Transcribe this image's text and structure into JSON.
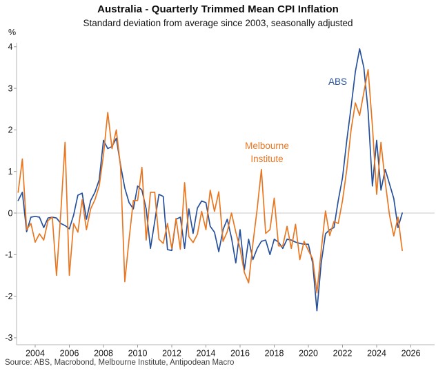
{
  "title": "Australia - Quarterly Trimmed Mean CPI Inflation",
  "subtitle": "Standard deviation from average since 2003, seasonally adjusted",
  "y_unit_label": "%",
  "source_note": "Source: ABS, Macrobond, Melbourne Institute, Antipodean Macro",
  "colors": {
    "abs_blue": "#27509B",
    "mi_orange": "#E87722",
    "zero_line": "#c9c9c9",
    "axis": "#b5b5b5",
    "tick": "#999999"
  },
  "chart_data": {
    "type": "line",
    "title": "Australia - Quarterly Trimmed Mean CPI Inflation",
    "subtitle": "Standard deviation from average since 2003, seasonally adjusted",
    "xlabel": "",
    "ylabel": "%",
    "ylim": [
      -3,
      4
    ],
    "xlim": [
      2002.9,
      2027.3
    ],
    "x_ticks": [
      2004,
      2006,
      2008,
      2010,
      2012,
      2014,
      2016,
      2018,
      2020,
      2022,
      2024,
      2026
    ],
    "y_ticks": [
      4,
      3,
      2,
      1,
      0,
      -1,
      -2,
      -3
    ],
    "grid": "horizontal zero line only",
    "legend_position": "in-plot text annotations",
    "x_start": 2003.0,
    "x_step": 0.25,
    "frequency": "quarterly",
    "series": [
      {
        "name": "ABS",
        "color": "#27509B",
        "annotation": {
          "text": "ABS"
        },
        "values": [
          0.3,
          0.5,
          -0.45,
          -0.1,
          -0.08,
          -0.1,
          -0.35,
          -0.12,
          -0.1,
          -0.12,
          -0.25,
          -0.3,
          -0.38,
          -0.05,
          0.43,
          0.48,
          -0.15,
          0.3,
          0.5,
          0.8,
          1.75,
          1.55,
          1.6,
          1.8,
          1.15,
          0.6,
          0.25,
          0.1,
          0.65,
          0.55,
          0.1,
          -0.85,
          -0.2,
          0.45,
          0.4,
          -0.88,
          -0.9,
          -0.15,
          -0.1,
          -0.85,
          0.1,
          -0.49,
          0.12,
          0.29,
          0.25,
          -0.32,
          -0.46,
          -0.93,
          -0.4,
          -0.15,
          -0.6,
          -1.2,
          -0.4,
          -1.37,
          -0.63,
          -1.12,
          -0.85,
          -0.68,
          -0.65,
          -1.0,
          -0.63,
          -0.7,
          -0.85,
          -0.63,
          -0.65,
          -0.7,
          -0.73,
          -0.75,
          -0.75,
          -1.2,
          -2.35,
          -1.2,
          -0.5,
          -0.4,
          -0.35,
          0.3,
          0.85,
          1.75,
          2.55,
          3.4,
          3.95,
          3.5,
          2.45,
          0.65,
          1.75,
          0.55,
          1.05,
          0.7,
          0.35,
          -0.35,
          0.0
        ]
      },
      {
        "name": "Melbourne Institute",
        "color": "#E87722",
        "annotation": {
          "text": "Melbourne Institute"
        },
        "values": [
          0.5,
          1.3,
          -0.4,
          -0.25,
          -0.7,
          -0.5,
          -0.65,
          -0.18,
          -0.1,
          -1.5,
          0.0,
          1.7,
          -1.5,
          -0.25,
          -0.46,
          0.32,
          -0.4,
          0.1,
          0.32,
          0.65,
          1.4,
          2.42,
          1.55,
          2.0,
          1.1,
          -1.65,
          -0.63,
          0.3,
          0.3,
          1.1,
          -0.65,
          0.5,
          0.5,
          -0.63,
          -0.73,
          -0.25,
          -0.85,
          -0.13,
          -0.87,
          0.73,
          -0.57,
          -0.71,
          -0.51,
          0.04,
          -0.4,
          0.55,
          0.04,
          0.51,
          -0.68,
          -0.45,
          0.0,
          -0.46,
          -0.85,
          -1.43,
          -1.68,
          -0.73,
          0.1,
          1.05,
          -0.49,
          -0.4,
          0.36,
          -0.79,
          -0.79,
          -0.32,
          -0.85,
          -0.27,
          -1.12,
          -0.68,
          -0.9,
          -1.1,
          -1.92,
          -0.9,
          0.05,
          -0.54,
          -0.2,
          -0.25,
          0.3,
          1.05,
          2.0,
          2.65,
          2.35,
          2.9,
          3.45,
          2.1,
          0.45,
          1.7,
          0.75,
          -0.05,
          -0.55,
          -0.1,
          -0.9
        ]
      }
    ]
  }
}
